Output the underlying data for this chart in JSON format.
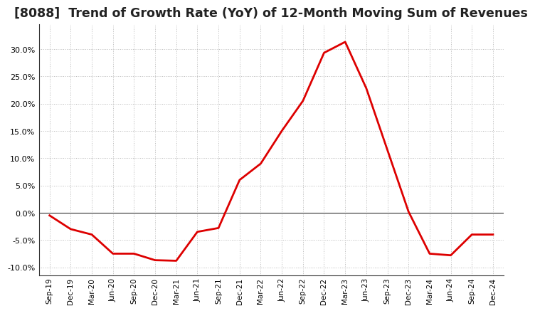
{
  "title": "[8088]  Trend of Growth Rate (YoY) of 12-Month Moving Sum of Revenues",
  "title_fontsize": 12.5,
  "line_color": "#dd0000",
  "line_width": 2.0,
  "background_color": "#ffffff",
  "grid_color": "#bbbbbb",
  "ylim": [
    -0.115,
    0.345
  ],
  "yticks": [
    -0.1,
    -0.05,
    0.0,
    0.05,
    0.1,
    0.15,
    0.2,
    0.25,
    0.3
  ],
  "x_labels": [
    "Sep-19",
    "Dec-19",
    "Mar-20",
    "Jun-20",
    "Sep-20",
    "Dec-20",
    "Mar-21",
    "Jun-21",
    "Sep-21",
    "Dec-21",
    "Mar-22",
    "Jun-22",
    "Sep-22",
    "Dec-22",
    "Mar-23",
    "Jun-23",
    "Sep-23",
    "Dec-23",
    "Mar-24",
    "Jun-24",
    "Sep-24",
    "Dec-24"
  ],
  "values": [
    -0.005,
    -0.03,
    -0.04,
    -0.075,
    -0.075,
    -0.087,
    -0.088,
    -0.035,
    -0.028,
    0.06,
    0.09,
    0.15,
    0.205,
    0.293,
    0.313,
    0.228,
    0.115,
    0.002,
    -0.075,
    -0.078,
    -0.04,
    -0.04
  ]
}
